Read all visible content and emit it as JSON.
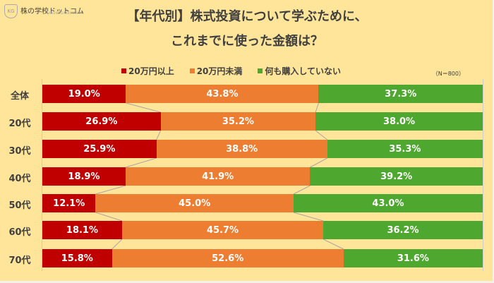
{
  "brand": {
    "name": "株の学校ドットコム",
    "sub": "KABUNOGAKKOU.COM",
    "mark": "KG"
  },
  "title": {
    "line1": "【年代別】株式投資について学ぶために、",
    "line2": "これまでに使った金額は？"
  },
  "legend": [
    {
      "label": "20万円以上",
      "color": "#c00000"
    },
    {
      "label": "20万円未満",
      "color": "#ed7d31"
    },
    {
      "label": "何も購入していない",
      "color": "#4ea72e"
    }
  ],
  "sample": "（N＝800）",
  "chart_data": {
    "type": "bar",
    "stacked": true,
    "orientation": "horizontal",
    "percent": true,
    "title": "【年代別】株式投資について学ぶために、これまでに使った金額は？",
    "note": "（N＝800）",
    "categories": [
      "全体",
      "20代",
      "30代",
      "40代",
      "50代",
      "60代",
      "70代"
    ],
    "series": [
      {
        "name": "20万円以上",
        "color": "#c00000",
        "values": [
          19.0,
          26.9,
          25.9,
          18.9,
          12.1,
          18.1,
          15.8
        ]
      },
      {
        "name": "20万円未満",
        "color": "#ed7d31",
        "values": [
          43.8,
          35.2,
          38.8,
          41.9,
          45.0,
          45.7,
          52.6
        ]
      },
      {
        "name": "何も購入していない",
        "color": "#4ea72e",
        "values": [
          37.3,
          38.0,
          35.3,
          39.2,
          43.0,
          36.2,
          31.6
        ]
      }
    ],
    "labels": [
      [
        "19.0%",
        "43.8%",
        "37.3%"
      ],
      [
        "26.9%",
        "35.2%",
        "38.0%"
      ],
      [
        "25.9%",
        "38.8%",
        "35.3%"
      ],
      [
        "18.9%",
        "41.9%",
        "39.2%"
      ],
      [
        "12.1%",
        "45.0%",
        "43.0%"
      ],
      [
        "18.1%",
        "45.7%",
        "36.2%"
      ],
      [
        "15.8%",
        "52.6%",
        "31.6%"
      ]
    ],
    "xlim": [
      0,
      100
    ],
    "legend_position": "top",
    "series_lines": true
  }
}
